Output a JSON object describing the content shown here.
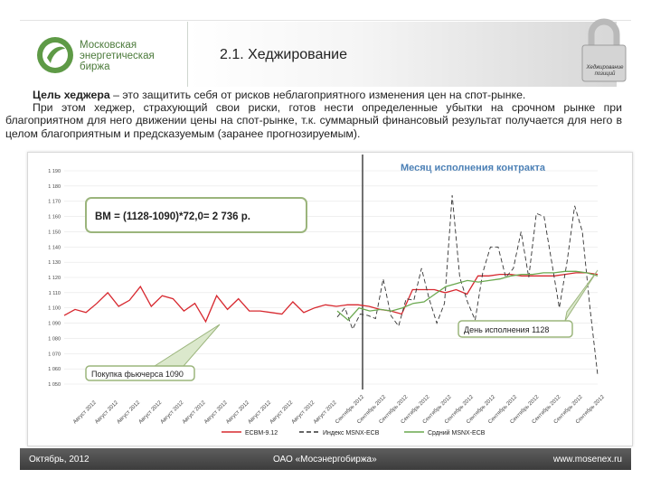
{
  "header": {
    "logo_lines": [
      "Московская",
      "энергетическая",
      "биржа"
    ],
    "title": "2.1. Хеджирование",
    "lock_caption": "Хеджирование позиций"
  },
  "body": {
    "para1_bold": "Цель хеджера",
    "para1_rest": " – это защитить себя от рисков неблагоприятного изменения цен на спот-рынке.",
    "para2": "При этом хеджер, страхующий свои риски, готов нести определенные убытки на срочном рынке при благоприятном для него движении цены на спот-рынке, т.к. суммарный финансовый результат получается для него в целом благоприятным и предсказуемым (заранее прогнозируемым)."
  },
  "chart_data": {
    "type": "line",
    "title": "Месяц исполнения контракта",
    "yticks": [
      "1 050",
      "1 060",
      "1 070",
      "1 080",
      "1 090",
      "1 100",
      "1 110",
      "1 120",
      "1 130",
      "1 140",
      "1 150",
      "1 160",
      "1 170",
      "1 180",
      "1 190"
    ],
    "ylim": [
      1050,
      1190
    ],
    "xticks": [
      "Август 2012",
      "Август 2012",
      "Август 2012",
      "Август 2012",
      "Август 2012",
      "Август 2012",
      "Август 2012",
      "Август 2012",
      "Август 2012",
      "Август 2012",
      "Август 2012",
      "Август 2012",
      "Сентябрь 2012",
      "Сентябрь 2012",
      "Сентябрь 2012",
      "Сентябрь 2012",
      "Сентябрь 2012",
      "Сентябрь 2012",
      "Сентябрь 2012",
      "Сентябрь 2012",
      "Сентябрь 2012",
      "Сентябрь 2012",
      "Сентябрь 2012",
      "Сентябрь 2012"
    ],
    "series": [
      {
        "name": "ЕСВМ-9.12",
        "color": "#d7282f",
        "values": [
          1095,
          1099,
          1097,
          1103,
          1110,
          1101,
          1105,
          1114,
          1101,
          1108,
          1106,
          1098,
          1103,
          1091,
          1108,
          1099,
          1106,
          1098,
          1098,
          1097,
          1096,
          1104,
          1097,
          1100,
          1102,
          1101,
          1102,
          1102,
          1101,
          1099,
          1098,
          1096,
          1112,
          1112,
          1112,
          1110,
          1112,
          1109,
          1121,
          1121,
          1122,
          1122,
          1121,
          1121,
          1121,
          1121,
          1122,
          1123,
          1123,
          1122
        ]
      },
      {
        "name": "Индекс MSNX-ECB",
        "color": "#333333",
        "dash": "5,3",
        "values": [
          1094,
          1100,
          1086,
          1096,
          1095,
          1093,
          1119,
          1095,
          1088,
          1106,
          1105,
          1126,
          1106,
          1090,
          1103,
          1174,
          1120,
          1104,
          1092,
          1123,
          1140,
          1140,
          1120,
          1126,
          1150,
          1120,
          1162,
          1160,
          1130,
          1100,
          1130,
          1167,
          1150,
          1100,
          1056
        ]
      },
      {
        "name": "Срдний MSNX-ECB",
        "color": "#6aa84f",
        "values": [
          1098,
          1092,
          1100,
          1098,
          1099,
          1098,
          1100,
          1103,
          1104,
          1109,
          1114,
          1116,
          1118,
          1117,
          1118,
          1119,
          1121,
          1122,
          1122,
          1123,
          1123,
          1124,
          1124,
          1123,
          1121
        ]
      }
    ],
    "annotations": {
      "formula": "ВМ = (1128-1090)*72,0= 2 736 р.",
      "execution": "День исполнения 1128",
      "purchase": "Покупка фьючерса 1090"
    },
    "legend_position": "bottom"
  },
  "footer": {
    "left": "Октябрь, 2012",
    "center": "ОАО «Мосэнергобиржа»",
    "right": "www.mosenex.ru"
  },
  "colors": {
    "brand_green": "#4b7a3a",
    "red_series": "#d7282f",
    "green_series": "#6aa84f"
  }
}
